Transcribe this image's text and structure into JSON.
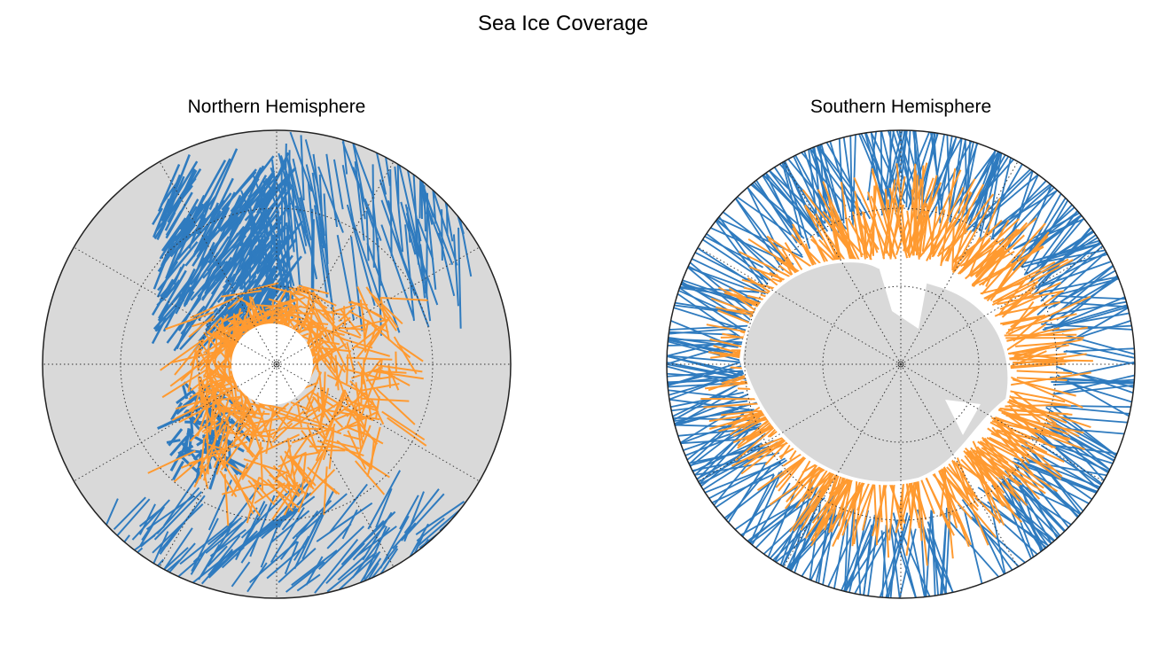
{
  "chart_data": {
    "type": "map",
    "title": "Sea Ice Coverage",
    "projection": "polar stereographic",
    "grid": true,
    "panels": [
      {
        "title": "Northern Hemisphere",
        "pole": "north",
        "track_colors": [
          "#2f7bbf",
          "#ff9a30"
        ],
        "land_color": "#d9d9d9"
      },
      {
        "title": "Southern Hemisphere",
        "pole": "south",
        "track_colors": [
          "#2f7bbf",
          "#ff9a30"
        ],
        "land_color": "#d9d9d9"
      }
    ]
  }
}
